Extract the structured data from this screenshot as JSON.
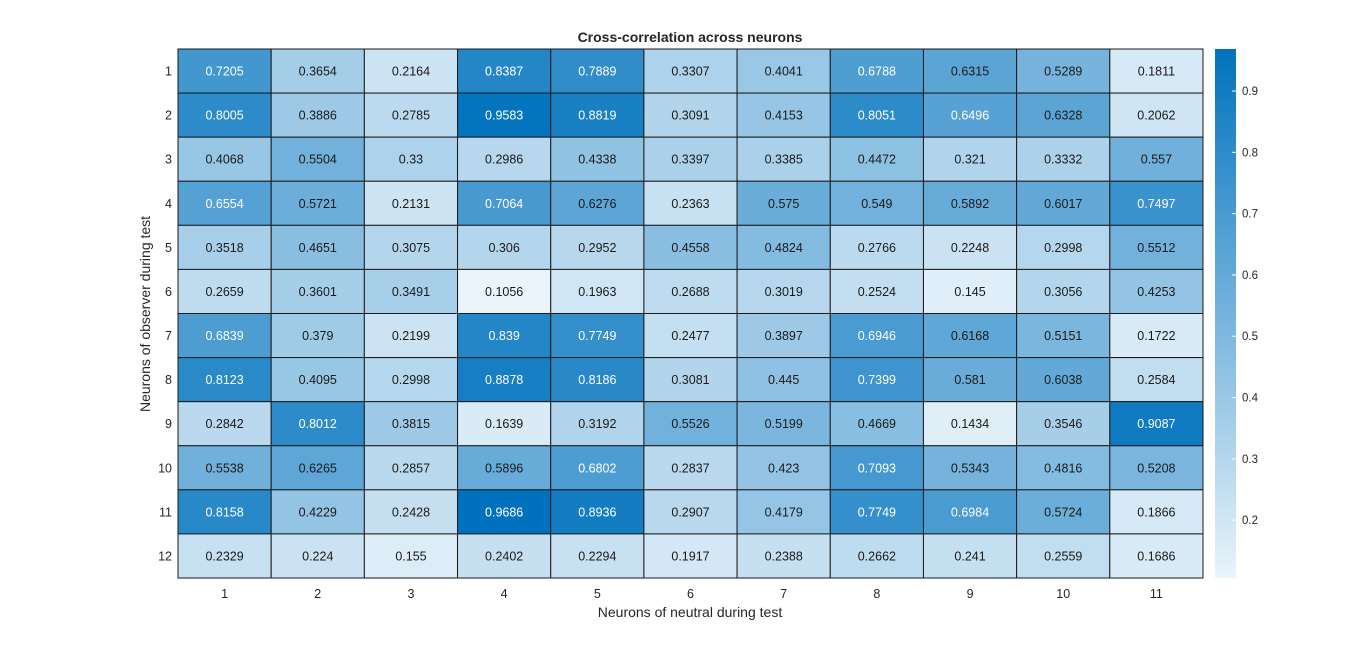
{
  "chart_data": {
    "type": "heatmap",
    "title": "Cross-correlation across neurons",
    "xlabel": "Neurons of neutral during test",
    "ylabel": "Neurons of observer during test",
    "x": [
      "1",
      "2",
      "3",
      "4",
      "5",
      "6",
      "7",
      "8",
      "9",
      "10",
      "11"
    ],
    "y": [
      "1",
      "2",
      "3",
      "4",
      "5",
      "6",
      "7",
      "8",
      "9",
      "10",
      "11",
      "12"
    ],
    "values": [
      [
        "0.7205",
        "0.3654",
        "0.2164",
        "0.8387",
        "0.7889",
        "0.3307",
        "0.4041",
        "0.6788",
        "0.6315",
        "0.5289",
        "0.1811"
      ],
      [
        "0.8005",
        "0.3886",
        "0.2785",
        "0.9583",
        "0.8819",
        "0.3091",
        "0.4153",
        "0.8051",
        "0.6496",
        "0.6328",
        "0.2062"
      ],
      [
        "0.4068",
        "0.5504",
        "0.33",
        "0.2986",
        "0.4338",
        "0.3397",
        "0.3385",
        "0.4472",
        "0.321",
        "0.3332",
        "0.557"
      ],
      [
        "0.6554",
        "0.5721",
        "0.2131",
        "0.7064",
        "0.6276",
        "0.2363",
        "0.575",
        "0.549",
        "0.5892",
        "0.6017",
        "0.7497"
      ],
      [
        "0.3518",
        "0.4651",
        "0.3075",
        "0.306",
        "0.2952",
        "0.4558",
        "0.4824",
        "0.2766",
        "0.2248",
        "0.2998",
        "0.5512"
      ],
      [
        "0.2659",
        "0.3601",
        "0.3491",
        "0.1056",
        "0.1963",
        "0.2688",
        "0.3019",
        "0.2524",
        "0.145",
        "0.3056",
        "0.4253"
      ],
      [
        "0.6839",
        "0.379",
        "0.2199",
        "0.839",
        "0.7749",
        "0.2477",
        "0.3897",
        "0.6946",
        "0.6168",
        "0.5151",
        "0.1722"
      ],
      [
        "0.8123",
        "0.4095",
        "0.2998",
        "0.8878",
        "0.8186",
        "0.3081",
        "0.445",
        "0.7399",
        "0.581",
        "0.6038",
        "0.2584"
      ],
      [
        "0.2842",
        "0.8012",
        "0.3815",
        "0.1639",
        "0.3192",
        "0.5526",
        "0.5199",
        "0.4669",
        "0.1434",
        "0.3546",
        "0.9087"
      ],
      [
        "0.5538",
        "0.6265",
        "0.2857",
        "0.5896",
        "0.6802",
        "0.2837",
        "0.423",
        "0.7093",
        "0.5343",
        "0.4816",
        "0.5208"
      ],
      [
        "0.8158",
        "0.4229",
        "0.2428",
        "0.9686",
        "0.8936",
        "0.2907",
        "0.4179",
        "0.7749",
        "0.6984",
        "0.5724",
        "0.1866"
      ],
      [
        "0.2329",
        "0.224",
        "0.155",
        "0.2402",
        "0.2294",
        "0.1917",
        "0.2388",
        "0.2662",
        "0.241",
        "0.2559",
        "0.1686"
      ]
    ],
    "colorbar": {
      "ticks": [
        "0.2",
        "0.3",
        "0.4",
        "0.5",
        "0.6",
        "0.7",
        "0.8",
        "0.9"
      ],
      "range": [
        0.1056,
        0.9686
      ]
    },
    "colormap": [
      "#eaf4fb",
      "#0072bd"
    ],
    "grid": true
  }
}
